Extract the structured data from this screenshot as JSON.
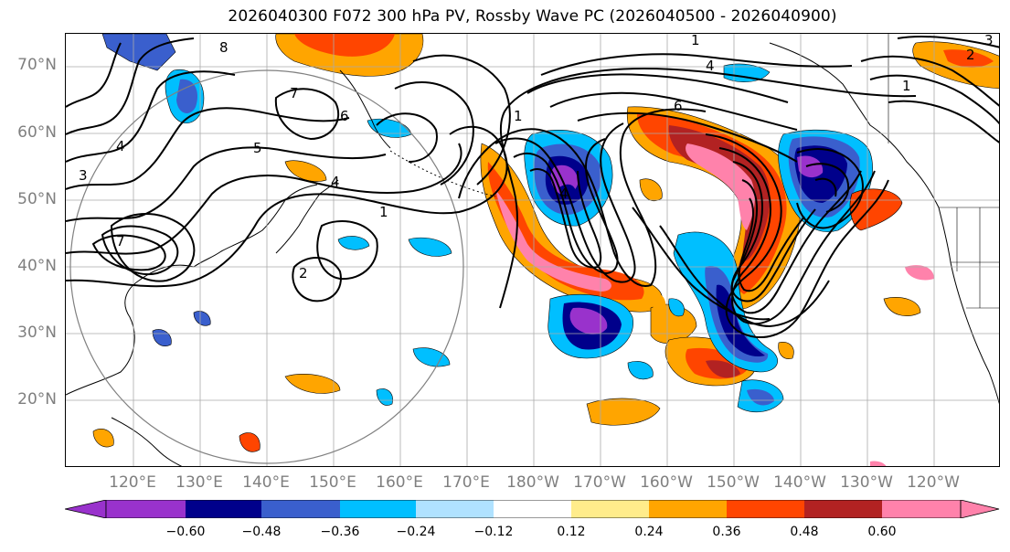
{
  "title": "2026040300 F072 300 hPa PV, Rossby Wave PC (2026040500 - 2026040900)",
  "map": {
    "lat_labels": [
      "70°N",
      "60°N",
      "50°N",
      "40°N",
      "30°N",
      "20°N"
    ],
    "lon_labels": [
      "120°E",
      "130°E",
      "140°E",
      "150°E",
      "160°E",
      "170°E",
      "180°W",
      "170°W",
      "160°W",
      "150°W",
      "140°W",
      "130°W",
      "120°W"
    ],
    "contour_labels": [
      "1",
      "4",
      "6",
      "1",
      "5",
      "4",
      "1",
      "7",
      "6",
      "8",
      "3",
      "7",
      "4",
      "2",
      "1",
      "3",
      "2",
      "4"
    ],
    "colors": {
      "grid": "#aaaaaa",
      "contour": "#000000",
      "circle": "#808080"
    }
  },
  "colorbar": {
    "tick_labels": [
      "−0.60",
      "−0.48",
      "−0.36",
      "−0.24",
      "−0.12",
      "0.12",
      "0.24",
      "0.36",
      "0.48",
      "0.60"
    ],
    "colors": [
      "#9932cc",
      "#00008b",
      "#3a5fcd",
      "#00bfff",
      "#b0e2ff",
      "#ffffff",
      "#ffec8b",
      "#ffa500",
      "#ff4500",
      "#b22222",
      "#ff82ab"
    ]
  }
}
